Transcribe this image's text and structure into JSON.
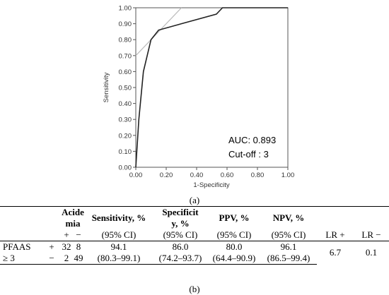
{
  "chart_data": {
    "type": "line",
    "xlabel": "1-Specificity",
    "ylabel": "Sensitivity",
    "xlim": [
      0,
      1
    ],
    "ylim": [
      0,
      1
    ],
    "x_ticks": [
      "0.00",
      "0.20",
      "0.40",
      "0.60",
      "0.80",
      "1.00"
    ],
    "y_ticks": [
      "0.00",
      "0.10",
      "0.20",
      "0.30",
      "0.40",
      "0.50",
      "0.60",
      "0.70",
      "0.80",
      "0.90",
      "1.00"
    ],
    "grid": false,
    "series": [
      {
        "role": "roc-curve",
        "color": "#222222",
        "points": [
          [
            0.0,
            0.0
          ],
          [
            0.02,
            0.3
          ],
          [
            0.05,
            0.6
          ],
          [
            0.1,
            0.8
          ],
          [
            0.15,
            0.86
          ],
          [
            0.3,
            0.9
          ],
          [
            0.53,
            0.96
          ],
          [
            0.57,
            1.0
          ],
          [
            1.0,
            1.0
          ]
        ]
      },
      {
        "role": "tangent-line",
        "color": "#bbbbbb",
        "points": [
          [
            0.0,
            0.7
          ],
          [
            0.3,
            1.0
          ]
        ]
      }
    ],
    "annotations": [
      "AUC: 0.893",
      "Cut-off : 3"
    ]
  },
  "captions": {
    "a": "(a)",
    "b": "(b)"
  },
  "table": {
    "headers": {
      "acidemia_l1": "Acide",
      "acidemia_l2": "mia",
      "sens_l1": "Sensitivity, %",
      "sens_l2": "(95% CI)",
      "spec_l1": "Specificit",
      "spec_l2": "y, %",
      "spec_l3": "(95% CI)",
      "ppv_l1": "PPV, %",
      "ppv_l2": "(95% CI)",
      "npv_l1": "NPV, %",
      "npv_l2": "(95% CI)",
      "lr_pos": "LR +",
      "lr_neg": "LR −",
      "plus": "+",
      "minus": "−"
    },
    "row": {
      "label_l1": "PFAAS",
      "label_l2": "≥ 3",
      "r1_sign": "+",
      "r1_a": "32",
      "r1_b": "8",
      "r2_sign": "−",
      "r2_a": "2",
      "r2_b": "49",
      "sens": "94.1",
      "sens_ci": "(80.3–99.1)",
      "spec": "86.0",
      "spec_ci": "(74.2–93.7)",
      "ppv": "80.0",
      "ppv_ci": "(64.4–90.9)",
      "npv": "96.1",
      "npv_ci": "(86.5–99.4)",
      "lr_pos": "6.7",
      "lr_neg": "0.1"
    }
  }
}
